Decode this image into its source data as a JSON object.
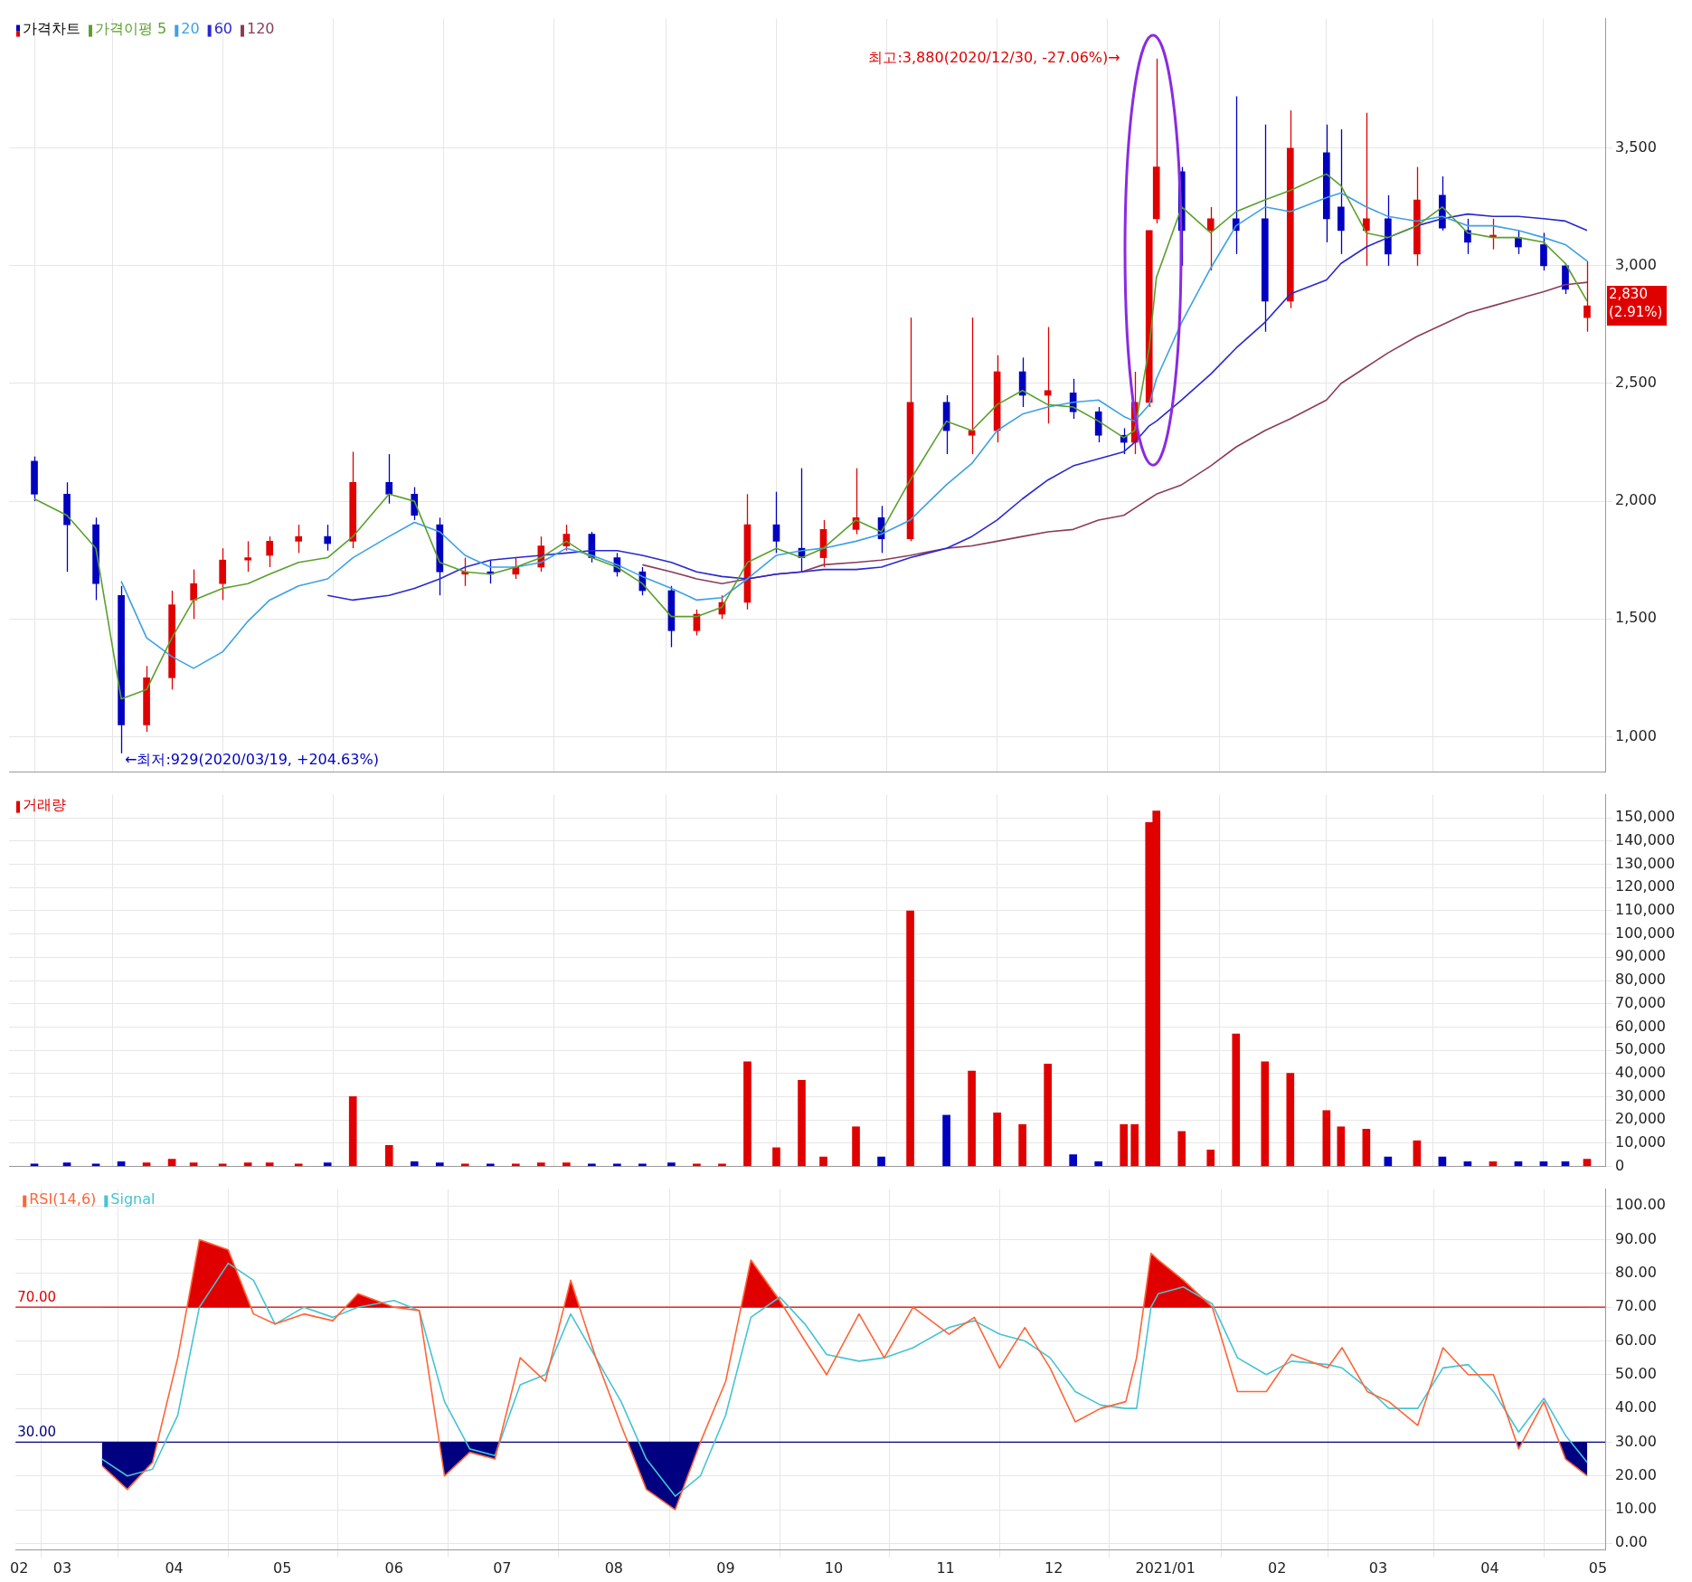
{
  "chart_data": [
    {
      "type": "candlestick",
      "x": [
        "2020-02-24",
        "2020-03-04",
        "2020-03-12",
        "2020-03-19",
        "2020-03-26",
        "2020-04-02",
        "2020-04-08",
        "2020-04-16",
        "2020-04-23",
        "2020-04-29",
        "2020-05-07",
        "2020-05-15",
        "2020-05-22",
        "2020-06-01",
        "2020-06-08",
        "2020-06-15",
        "2020-06-22",
        "2020-06-29",
        "2020-07-06",
        "2020-07-13",
        "2020-07-20",
        "2020-07-27",
        "2020-08-03",
        "2020-08-10",
        "2020-08-18",
        "2020-08-25",
        "2020-09-01",
        "2020-09-08",
        "2020-09-16",
        "2020-09-23",
        "2020-09-29",
        "2020-10-08",
        "2020-10-15",
        "2020-10-23",
        "2020-11-02",
        "2020-11-09",
        "2020-11-16",
        "2020-11-23",
        "2020-11-30",
        "2020-12-07",
        "2020-12-14",
        "2020-12-21",
        "2020-12-24",
        "2020-12-28",
        "2020-12-30",
        "2021-01-06",
        "2021-01-14",
        "2021-01-21",
        "2021-01-29",
        "2021-02-05",
        "2021-02-15",
        "2021-02-19",
        "2021-02-26",
        "2021-03-04",
        "2021-03-12",
        "2021-03-19",
        "2021-03-26",
        "2021-04-02",
        "2021-04-09",
        "2021-04-16",
        "2021-04-22",
        "2021-04-28"
      ],
      "series": [
        {
          "name": "가격차트",
          "ohlc": [
            [
              2170,
              2190,
              2000,
              2030
            ],
            [
              2030,
              2080,
              1700,
              1900
            ],
            [
              1900,
              1930,
              1580,
              1650
            ],
            [
              1600,
              1640,
              929,
              1050
            ],
            [
              1050,
              1300,
              1020,
              1250
            ],
            [
              1250,
              1620,
              1200,
              1560
            ],
            [
              1580,
              1710,
              1500,
              1650
            ],
            [
              1650,
              1800,
              1580,
              1750
            ],
            [
              1750,
              1830,
              1700,
              1760
            ],
            [
              1770,
              1850,
              1720,
              1830
            ],
            [
              1830,
              1900,
              1780,
              1850
            ],
            [
              1850,
              1900,
              1790,
              1820
            ],
            [
              1830,
              2210,
              1800,
              2080
            ],
            [
              2080,
              2200,
              1990,
              2030
            ],
            [
              2030,
              2060,
              1920,
              1940
            ],
            [
              1900,
              1930,
              1600,
              1700
            ],
            [
              1690,
              1760,
              1640,
              1700
            ],
            [
              1700,
              1750,
              1650,
              1690
            ],
            [
              1690,
              1760,
              1670,
              1720
            ],
            [
              1720,
              1850,
              1700,
              1810
            ],
            [
              1810,
              1900,
              1790,
              1860
            ],
            [
              1860,
              1870,
              1740,
              1760
            ],
            [
              1760,
              1780,
              1680,
              1700
            ],
            [
              1700,
              1720,
              1600,
              1620
            ],
            [
              1620,
              1640,
              1380,
              1450
            ],
            [
              1450,
              1540,
              1430,
              1520
            ],
            [
              1520,
              1600,
              1500,
              1570
            ],
            [
              1570,
              2030,
              1540,
              1900
            ],
            [
              1900,
              2040,
              1780,
              1830
            ],
            [
              1800,
              2140,
              1700,
              1760
            ],
            [
              1760,
              1920,
              1720,
              1880
            ],
            [
              1880,
              2140,
              1860,
              1930
            ],
            [
              1930,
              1980,
              1780,
              1840
            ],
            [
              1840,
              2780,
              1830,
              2420
            ],
            [
              2420,
              2450,
              2200,
              2300
            ],
            [
              2280,
              2780,
              2200,
              2300
            ],
            [
              2300,
              2620,
              2250,
              2550
            ],
            [
              2550,
              2610,
              2400,
              2450
            ],
            [
              2450,
              2740,
              2330,
              2470
            ],
            [
              2460,
              2520,
              2350,
              2380
            ],
            [
              2380,
              2400,
              2250,
              2280
            ],
            [
              2280,
              2310,
              2200,
              2250
            ],
            [
              2250,
              2550,
              2200,
              2420
            ],
            [
              2420,
              3150,
              2400,
              3150
            ],
            [
              3200,
              3880,
              3180,
              3420
            ],
            [
              3400,
              3420,
              3000,
              3150
            ],
            [
              3150,
              3250,
              2980,
              3200
            ],
            [
              3200,
              3720,
              3050,
              3150
            ],
            [
              3200,
              3600,
              2720,
              2850
            ],
            [
              2850,
              3660,
              2820,
              3500
            ],
            [
              3480,
              3600,
              3100,
              3200
            ],
            [
              3250,
              3580,
              3050,
              3150
            ],
            [
              3150,
              3650,
              3000,
              3200
            ],
            [
              3200,
              3300,
              3000,
              3050
            ],
            [
              3050,
              3420,
              3000,
              3280
            ],
            [
              3300,
              3380,
              3150,
              3160
            ],
            [
              3150,
              3200,
              3050,
              3100
            ],
            [
              3120,
              3200,
              3070,
              3130
            ],
            [
              3120,
              3150,
              3050,
              3080
            ],
            [
              3090,
              3140,
              2980,
              3000
            ],
            [
              3000,
              3010,
              2880,
              2900
            ],
            [
              2780,
              3020,
              2720,
              2830
            ]
          ],
          "colors": [
            "#0000c0",
            "#0000c0",
            "#0000c0",
            "#0000c0",
            "#e00000",
            "#e00000",
            "#e00000",
            "#e00000",
            "#e00000",
            "#e00000",
            "#e00000",
            "#0000c0",
            "#e00000",
            "#0000c0",
            "#0000c0",
            "#0000c0",
            "#e00000",
            "#0000c0",
            "#e00000",
            "#e00000",
            "#e00000",
            "#0000c0",
            "#0000c0",
            "#0000c0",
            "#0000c0",
            "#e00000",
            "#e00000",
            "#e00000",
            "#0000c0",
            "#0000c0",
            "#e00000",
            "#e00000",
            "#0000c0",
            "#e00000",
            "#0000c0",
            "#e00000",
            "#e00000",
            "#0000c0",
            "#e00000",
            "#0000c0",
            "#0000c0",
            "#0000c0",
            "#e00000",
            "#e00000",
            "#e00000",
            "#0000c0",
            "#e00000",
            "#0000c0",
            "#0000c0",
            "#e00000",
            "#0000c0",
            "#0000c0",
            "#e00000",
            "#0000c0",
            "#e00000",
            "#0000c0",
            "#0000c0",
            "#e00000",
            "#0000c0",
            "#0000c0",
            "#0000c0",
            "#e00000"
          ]
        },
        {
          "name": "가격이평 5",
          "type": "line",
          "color": "#5aa02c",
          "values": [
            2010,
            1940,
            1800,
            1160,
            1200,
            1420,
            1580,
            1630,
            1650,
            1690,
            1740,
            1760,
            1850,
            2030,
            2000,
            1740,
            1700,
            1690,
            1720,
            1760,
            1830,
            1760,
            1720,
            1650,
            1510,
            1510,
            1550,
            1740,
            1800,
            1760,
            1800,
            1920,
            1870,
            2090,
            2340,
            2300,
            2410,
            2470,
            2410,
            2400,
            2340,
            2270,
            2300,
            2650,
            2950,
            3250,
            3140,
            3230,
            3280,
            3320,
            3390,
            3340,
            3140,
            3120,
            3170,
            3250,
            3140,
            3120,
            3120,
            3100,
            3010,
            2850
          ]
        },
        {
          "name": "20",
          "type": "line",
          "color": "#3ca0e6",
          "values": [
            null,
            null,
            null,
            1660,
            1420,
            1340,
            1290,
            1360,
            1490,
            1580,
            1640,
            1670,
            1760,
            1850,
            1910,
            1870,
            1770,
            1720,
            1720,
            1740,
            1800,
            1770,
            1730,
            1680,
            1630,
            1580,
            1590,
            1670,
            1770,
            1790,
            1800,
            1830,
            1860,
            1920,
            2070,
            2160,
            2300,
            2370,
            2400,
            2420,
            2430,
            2360,
            2340,
            2410,
            2520,
            2760,
            2990,
            3170,
            3250,
            3230,
            3290,
            3310,
            3250,
            3210,
            3190,
            3210,
            3170,
            3170,
            3150,
            3120,
            3090,
            3020
          ]
        },
        {
          "name": "60",
          "type": "line",
          "color": "#2828d2",
          "values": [
            null,
            null,
            null,
            null,
            null,
            null,
            null,
            null,
            null,
            null,
            null,
            1600,
            1580,
            1600,
            1630,
            1670,
            1720,
            1750,
            1760,
            1770,
            1780,
            1790,
            1790,
            1770,
            1740,
            1700,
            1680,
            1670,
            1690,
            1700,
            1710,
            1710,
            1720,
            1760,
            1800,
            1850,
            1920,
            2010,
            2090,
            2150,
            2180,
            2210,
            2250,
            2320,
            2340,
            2430,
            2540,
            2650,
            2760,
            2880,
            2940,
            3010,
            3080,
            3120,
            3170,
            3200,
            3220,
            3210,
            3210,
            3200,
            3190,
            3150
          ]
        },
        {
          "name": "120",
          "type": "line",
          "color": "#8c3c5a",
          "values": [
            null,
            null,
            null,
            null,
            null,
            null,
            null,
            null,
            null,
            null,
            null,
            null,
            null,
            null,
            null,
            null,
            null,
            null,
            null,
            null,
            null,
            null,
            null,
            1730,
            1700,
            1670,
            1650,
            1670,
            1690,
            1700,
            1730,
            1740,
            1750,
            1770,
            1800,
            1810,
            1830,
            1850,
            1870,
            1880,
            1920,
            1940,
            1970,
            2010,
            2030,
            2070,
            2150,
            2230,
            2300,
            2350,
            2430,
            2500,
            2570,
            2630,
            2700,
            2750,
            2800,
            2830,
            2860,
            2890,
            2920,
            2930
          ]
        }
      ],
      "xlim": [
        "2020-02-17",
        "2021-05-03"
      ],
      "xticks": [
        {
          "value": "2020-02-18",
          "label": null
        },
        {
          "value": "2020-03-01",
          "label": null
        },
        {
          "value": "2020-04-01",
          "label": null
        },
        {
          "value": "2020-05-01",
          "label": null
        },
        {
          "value": "2020-06-01",
          "label": null
        },
        {
          "value": "2020-07-01",
          "label": null
        },
        {
          "value": "2020-08-01",
          "label": null
        },
        {
          "value": "2020-09-01",
          "label": null
        },
        {
          "value": "2020-10-01",
          "label": null
        },
        {
          "value": "2020-11-01",
          "label": null
        },
        {
          "value": "2020-12-01",
          "label": null
        },
        {
          "value": "2021-01-01",
          "label": null
        },
        {
          "value": "2021-02-01",
          "label": null
        },
        {
          "value": "2021-03-01",
          "label": null
        },
        {
          "value": "2021-04-01",
          "label": null
        },
        {
          "value": "2021-05-01",
          "label": null
        }
      ],
      "ylim": [
        850,
        4050
      ],
      "yticks": [
        {
          "value": 1000,
          "label": "1,000"
        },
        {
          "value": 1500,
          "label": "1,500"
        },
        {
          "value": 2000,
          "label": "2,000"
        },
        {
          "value": 2500,
          "label": "2,500"
        },
        {
          "value": 3000,
          "label": "3,000"
        },
        {
          "value": 3500,
          "label": "3,500"
        }
      ],
      "annotations": [
        {
          "text": "←최저:929(2020/03/19, +204.63%)",
          "x": "2020-03-19",
          "y": 929
        },
        {
          "text": "최고:3,880(2020/12/30, -27.06%)→",
          "x": "2020-12-30",
          "y": 3880
        },
        "2,830 (2.91%)"
      ],
      "grid": true,
      "legend": "top left",
      "tick_labels": "y"
    },
    {
      "type": "bar",
      "x": [
        "2020-02-24",
        "2020-03-04",
        "2020-03-12",
        "2020-03-19",
        "2020-03-26",
        "2020-04-02",
        "2020-04-08",
        "2020-04-16",
        "2020-04-23",
        "2020-04-29",
        "2020-05-07",
        "2020-05-15",
        "2020-05-22",
        "2020-06-01",
        "2020-06-08",
        "2020-06-15",
        "2020-06-22",
        "2020-06-29",
        "2020-07-06",
        "2020-07-13",
        "2020-07-20",
        "2020-07-27",
        "2020-08-03",
        "2020-08-10",
        "2020-08-18",
        "2020-08-25",
        "2020-09-01",
        "2020-09-08",
        "2020-09-16",
        "2020-09-23",
        "2020-09-29",
        "2020-10-08",
        "2020-10-15",
        "2020-10-23",
        "2020-11-02",
        "2020-11-09",
        "2020-11-16",
        "2020-11-23",
        "2020-11-30",
        "2020-12-07",
        "2020-12-14",
        "2020-12-21",
        "2020-12-24",
        "2020-12-28",
        "2020-12-30",
        "2021-01-06",
        "2021-01-14",
        "2021-01-21",
        "2021-01-29",
        "2021-02-05",
        "2021-02-15",
        "2021-02-19",
        "2021-02-26",
        "2021-03-04",
        "2021-03-12",
        "2021-03-19",
        "2021-03-26",
        "2021-04-02",
        "2021-04-09",
        "2021-04-16",
        "2021-04-22",
        "2021-04-28"
      ],
      "series": [
        {
          "name": "거래량",
          "color": "#e00000",
          "values": [
            1000,
            1500,
            1000,
            2000,
            1500,
            3000,
            1500,
            1000,
            1500,
            1500,
            1000,
            1500,
            30000,
            9000,
            2000,
            1500,
            1000,
            1000,
            1000,
            1500,
            1500,
            1000,
            1000,
            1000,
            1500,
            1000,
            1000,
            45000,
            8000,
            37000,
            4000,
            17000,
            4000,
            110000,
            22000,
            41000,
            23000,
            18000,
            44000,
            5000,
            2000,
            18000,
            18000,
            148000,
            153000,
            15000,
            7000,
            57000,
            45000,
            40000,
            24000,
            17000,
            16000,
            4000,
            11000,
            4000,
            2000,
            2000,
            2000,
            2000,
            2000,
            3000
          ],
          "colors": [
            "#0000c0",
            "#0000c0",
            "#0000c0",
            "#0000c0",
            "#e00000",
            "#e00000",
            "#e00000",
            "#e00000",
            "#e00000",
            "#e00000",
            "#e00000",
            "#0000c0",
            "#e00000",
            "#e00000",
            "#0000c0",
            "#0000c0",
            "#e00000",
            "#0000c0",
            "#e00000",
            "#e00000",
            "#e00000",
            "#0000c0",
            "#0000c0",
            "#0000c0",
            "#0000c0",
            "#e00000",
            "#e00000",
            "#e00000",
            "#e00000",
            "#e00000",
            "#e00000",
            "#e00000",
            "#0000c0",
            "#e00000",
            "#0000c0",
            "#e00000",
            "#e00000",
            "#e00000",
            "#e00000",
            "#0000c0",
            "#0000c0",
            "#e00000",
            "#e00000",
            "#e00000",
            "#e00000",
            "#e00000",
            "#e00000",
            "#e00000",
            "#e00000",
            "#e00000",
            "#e00000",
            "#e00000",
            "#e00000",
            "#0000c0",
            "#e00000",
            "#0000c0",
            "#0000c0",
            "#e00000",
            "#0000c0",
            "#0000c0",
            "#0000c0",
            "#e00000"
          ]
        }
      ],
      "xlim": [
        "2020-02-17",
        "2021-05-03"
      ],
      "xticks": [
        {
          "value": "2020-02-18",
          "label": null
        },
        {
          "value": "2020-03-01",
          "label": null
        },
        {
          "value": "2020-04-01",
          "label": null
        },
        {
          "value": "2020-05-01",
          "label": null
        },
        {
          "value": "2020-06-01",
          "label": null
        },
        {
          "value": "2020-07-01",
          "label": null
        },
        {
          "value": "2020-08-01",
          "label": null
        },
        {
          "value": "2020-09-01",
          "label": null
        },
        {
          "value": "2020-10-01",
          "label": null
        },
        {
          "value": "2020-11-01",
          "label": null
        },
        {
          "value": "2020-12-01",
          "label": null
        },
        {
          "value": "2021-01-01",
          "label": null
        },
        {
          "value": "2021-02-01",
          "label": null
        },
        {
          "value": "2021-03-01",
          "label": null
        },
        {
          "value": "2021-04-01",
          "label": null
        },
        {
          "value": "2021-05-01",
          "label": null
        }
      ],
      "ylim": [
        0,
        160000
      ],
      "yticks": [
        0,
        {
          "value": 10000,
          "label": "10,000"
        },
        {
          "value": 20000,
          "label": "20,000"
        },
        {
          "value": 30000,
          "label": "30,000"
        },
        {
          "value": 40000,
          "label": "40,000"
        },
        {
          "value": 50000,
          "label": "50,000"
        },
        {
          "value": 60000,
          "label": "60,000"
        },
        {
          "value": 70000,
          "label": "70,000"
        },
        {
          "value": 80000,
          "label": "80,000"
        },
        {
          "value": 90000,
          "label": "90,000"
        },
        {
          "value": 100000,
          "label": "100,000"
        },
        {
          "value": 110000,
          "label": "110,000"
        },
        {
          "value": 120000,
          "label": "120,000"
        },
        {
          "value": 130000,
          "label": "130,000"
        },
        {
          "value": 140000,
          "label": "140,000"
        },
        {
          "value": 150000,
          "label": "150,000"
        }
      ],
      "grid": true,
      "legend": "top left",
      "tick_labels": "y"
    },
    {
      "type": "line",
      "x": [
        "2020-03-12",
        "2020-03-19",
        "2020-03-26",
        "2020-04-02",
        "2020-04-08",
        "2020-04-16",
        "2020-04-23",
        "2020-04-29",
        "2020-05-07",
        "2020-05-15",
        "2020-05-22",
        "2020-06-01",
        "2020-06-08",
        "2020-06-15",
        "2020-06-22",
        "2020-06-29",
        "2020-07-06",
        "2020-07-13",
        "2020-07-20",
        "2020-07-27",
        "2020-08-03",
        "2020-08-10",
        "2020-08-18",
        "2020-08-25",
        "2020-09-01",
        "2020-09-08",
        "2020-09-16",
        "2020-09-23",
        "2020-09-29",
        "2020-10-08",
        "2020-10-15",
        "2020-10-23",
        "2020-11-02",
        "2020-11-09",
        "2020-11-16",
        "2020-11-23",
        "2020-11-30",
        "2020-12-07",
        "2020-12-14",
        "2020-12-21",
        "2020-12-24",
        "2020-12-28",
        "2020-12-30",
        "2021-01-06",
        "2021-01-14",
        "2021-01-21",
        "2021-01-29",
        "2021-02-05",
        "2021-02-15",
        "2021-02-19",
        "2021-02-26",
        "2021-03-04",
        "2021-03-12",
        "2021-03-19",
        "2021-03-26",
        "2021-04-02",
        "2021-04-09",
        "2021-04-16",
        "2021-04-22",
        "2021-04-28"
      ],
      "series": [
        {
          "name": "RSI(14,6)",
          "color": "#ff6437",
          "values": [
            23,
            16,
            24,
            55,
            90,
            87,
            68,
            65,
            68,
            66,
            74,
            70,
            69,
            20,
            27,
            25,
            55,
            48,
            78,
            55,
            35,
            16,
            10,
            30,
            48,
            84,
            72,
            60,
            50,
            68,
            55,
            70,
            62,
            67,
            52,
            64,
            52,
            36,
            40,
            42,
            55,
            86,
            84,
            78,
            70,
            45,
            45,
            56,
            52,
            58,
            45,
            42,
            35,
            58,
            50,
            50,
            28,
            42,
            25,
            20
          ]
        },
        {
          "name": "Signal",
          "color": "#46c3d2",
          "values": [
            25,
            20,
            22,
            38,
            70,
            83,
            78,
            65,
            70,
            67,
            70,
            72,
            69,
            42,
            28,
            26,
            47,
            50,
            68,
            55,
            42,
            25,
            14,
            20,
            38,
            67,
            73,
            65,
            56,
            54,
            55,
            58,
            64,
            66,
            62,
            60,
            55,
            45,
            41,
            40,
            40,
            70,
            74,
            76,
            71,
            55,
            50,
            54,
            53,
            52,
            46,
            40,
            40,
            52,
            53,
            45,
            33,
            43,
            32,
            24
          ]
        }
      ],
      "xlim": [
        "2020-02-17",
        "2021-05-03"
      ],
      "xticks": [
        {
          "value": "2020-02-18",
          "label": "02"
        },
        {
          "value": "2020-03-01",
          "label": "03"
        },
        {
          "value": "2020-04-01",
          "label": "04"
        },
        {
          "value": "2020-05-01",
          "label": "05"
        },
        {
          "value": "2020-06-01",
          "label": "06"
        },
        {
          "value": "2020-07-01",
          "label": "07"
        },
        {
          "value": "2020-08-01",
          "label": "08"
        },
        {
          "value": "2020-09-01",
          "label": "09"
        },
        {
          "value": "2020-10-01",
          "label": "10"
        },
        {
          "value": "2020-11-01",
          "label": "11"
        },
        {
          "value": "2020-12-01",
          "label": "12"
        },
        {
          "value": "2021-01-01",
          "label": "2021/01"
        },
        {
          "value": "2021-02-01",
          "label": "02"
        },
        {
          "value": "2021-03-01",
          "label": "03"
        },
        {
          "value": "2021-04-01",
          "label": "04"
        },
        {
          "value": "2021-05-01",
          "label": "05"
        }
      ],
      "ylim": [
        -2,
        105
      ],
      "yticks": [
        {
          "value": 0,
          "label": "0.00"
        },
        {
          "value": 10,
          "label": "10.00"
        },
        {
          "value": 20,
          "label": "20.00"
        },
        {
          "value": 30,
          "label": "30.00"
        },
        {
          "value": 40,
          "label": "40.00"
        },
        {
          "value": 50,
          "label": "50.00"
        },
        {
          "value": 60,
          "label": "60.00"
        },
        {
          "value": 70,
          "label": "70.00"
        },
        {
          "value": 80,
          "label": "80.00"
        },
        {
          "value": 90,
          "label": "90.00"
        },
        {
          "value": 100,
          "label": "100.00"
        }
      ],
      "ref_lines": [
        {
          "axis": "y",
          "value": 70,
          "label": "70.00",
          "color": "#e00000"
        },
        {
          "axis": "y",
          "value": 30,
          "label": "30.00",
          "color": "#000080"
        }
      ],
      "grid": true,
      "legend": "top left"
    }
  ]
}
